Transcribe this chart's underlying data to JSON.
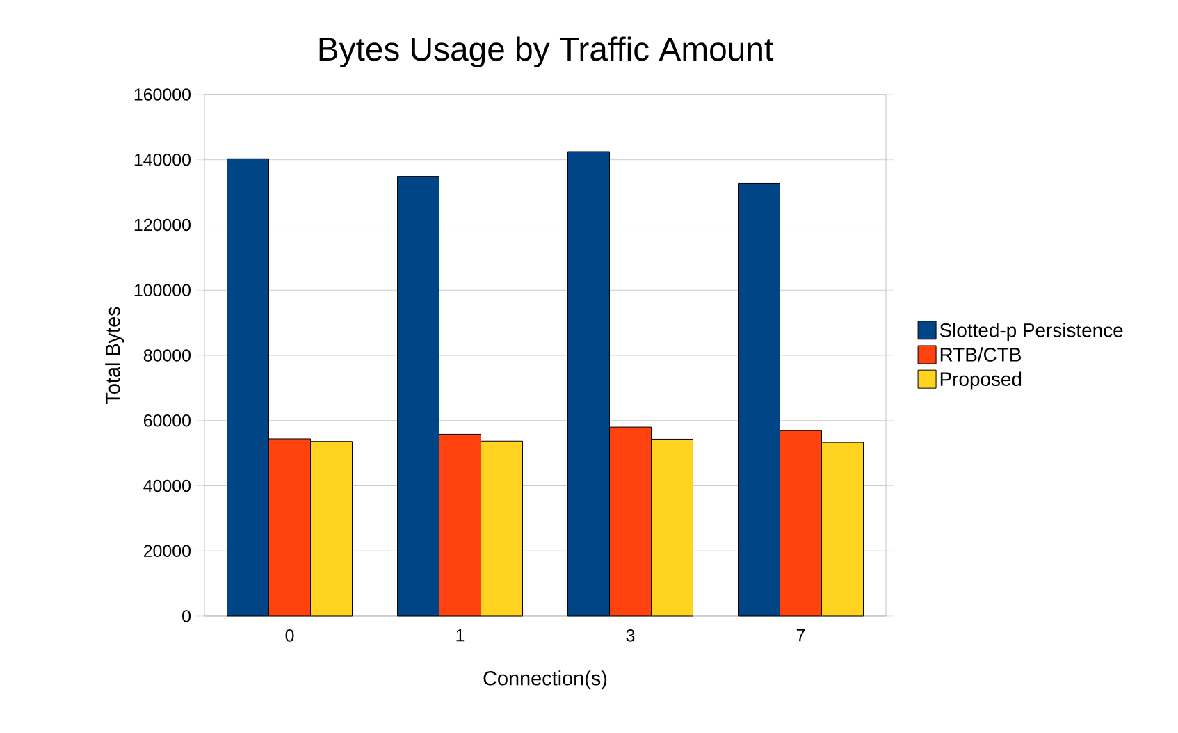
{
  "chart_data": {
    "type": "bar",
    "title": "Bytes Usage by Traffic Amount",
    "xlabel": "Connection(s)",
    "ylabel": "Total Bytes",
    "categories": [
      "0",
      "1",
      "3",
      "7"
    ],
    "series": [
      {
        "name": "Slotted-p Persistence",
        "color": "#004586",
        "values": [
          140300,
          134900,
          142500,
          132800
        ]
      },
      {
        "name": "RTB/CTB",
        "color": "#ff420e",
        "values": [
          54400,
          55800,
          58000,
          56900
        ]
      },
      {
        "name": "Proposed",
        "color": "#ffd320",
        "values": [
          53600,
          53700,
          54300,
          53300
        ]
      }
    ],
    "ylim": [
      0,
      160000
    ],
    "yticks": [
      0,
      20000,
      40000,
      60000,
      80000,
      100000,
      120000,
      140000,
      160000
    ],
    "grid": "y",
    "legend": "right"
  }
}
